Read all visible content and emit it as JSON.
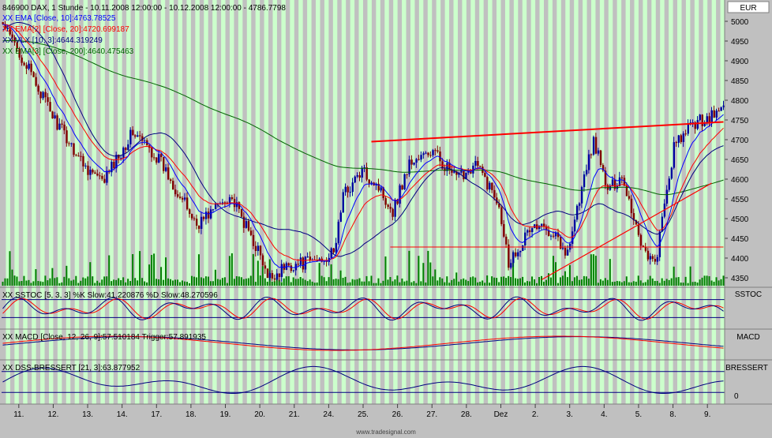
{
  "legends": {
    "title": "846900 DAX, 1 Stunde - 10.11.2008 12:00:00 - 10.12.2008 12:00:00 - 4786.7798",
    "ema10": "XX EMA [Close, 10]:4763.78525",
    "ema20": "XX EMA[2] [Close, 20]:4720.699187",
    "vlx": "XX VLX [10, 3]:4644.319249",
    "ema200": "XX EMA[3] [Close, 200]:4640.475463",
    "sstoc": "XX SSTOC [5, 3, 3] %K Slow:41.220876 %D Slow:48.270596",
    "macd": "XX MACD [Close, 12, 26, 9]:57.510184 Trigger:57.891935",
    "dss": "XX DSS-BRESSERT [21, 3]:63.877952"
  },
  "axis_tags": {
    "currency": "EUR",
    "sstoc": "SSTOC",
    "macd": "MACD",
    "dss": "BRESSERT",
    "dss_zero": "0"
  },
  "footer": "www.tradesignal.com",
  "colors": {
    "bg": "#c0c0c0",
    "highlight": "#ccffcc",
    "candle_up": "#0000a0",
    "candle_down": "#800000",
    "volume": "#008000",
    "ema10": "#0000ff",
    "ema20": "#ff0000",
    "vlx": "#000080",
    "ema200": "#006400",
    "trend": "#ff0000",
    "signal_line": "#000080"
  },
  "chart_data": [
    {
      "type": "candlestick",
      "title": "846900 DAX, 1 Stunde - 10.11.2008 12:00:00 - 10.12.2008 12:00:00 - 4786.7798",
      "ylabel": "EUR",
      "y_ticks": [
        4350,
        4400,
        4450,
        4500,
        4550,
        4600,
        4650,
        4700,
        4750,
        4800,
        4850,
        4900,
        4950,
        5000
      ],
      "ylim": [
        4330,
        5050
      ],
      "x_tick_labels": [
        "11.",
        "12.",
        "13.",
        "14.",
        "17.",
        "18.",
        "19.",
        "20.",
        "21.",
        "24.",
        "25.",
        "26.",
        "27.",
        "28.",
        "Dez",
        "2.",
        "3.",
        "4.",
        "5.",
        "8.",
        "9."
      ],
      "close_keypoints": [
        [
          0,
          4990
        ],
        [
          8,
          4910
        ],
        [
          22,
          4750
        ],
        [
          34,
          4640
        ],
        [
          42,
          4590
        ],
        [
          55,
          4720
        ],
        [
          66,
          4650
        ],
        [
          82,
          4485
        ],
        [
          96,
          4560
        ],
        [
          108,
          4420
        ],
        [
          112,
          4345
        ],
        [
          120,
          4380
        ],
        [
          130,
          4390
        ],
        [
          140,
          4410
        ],
        [
          144,
          4560
        ],
        [
          152,
          4620
        ],
        [
          158,
          4590
        ],
        [
          165,
          4520
        ],
        [
          172,
          4640
        ],
        [
          182,
          4670
        ],
        [
          192,
          4600
        ],
        [
          200,
          4640
        ],
        [
          210,
          4540
        ],
        [
          214,
          4390
        ],
        [
          224,
          4480
        ],
        [
          234,
          4470
        ],
        [
          238,
          4400
        ],
        [
          250,
          4700
        ],
        [
          256,
          4570
        ],
        [
          262,
          4610
        ],
        [
          270,
          4440
        ],
        [
          276,
          4380
        ],
        [
          284,
          4680
        ],
        [
          292,
          4740
        ],
        [
          300,
          4760
        ],
        [
          305,
          4780
        ]
      ],
      "last_close": 4786.7798,
      "ema10_last": 4763.78525,
      "ema20_last": 4720.699187,
      "vlx_last": 4644.319249,
      "ema200_last": 4640.475463,
      "horizontal_line": 4428,
      "trendlines": [
        {
          "from": [
            156,
            4695
          ],
          "to": [
            305,
            4745
          ]
        },
        {
          "from": [
            228,
            4345
          ],
          "to": [
            300,
            4590
          ]
        }
      ]
    },
    {
      "type": "line",
      "title": "XX SSTOC [5, 3, 3] %K Slow:41.220876 %D Slow:48.270596",
      "series": [
        {
          "name": "%K Slow",
          "last": 41.220876
        },
        {
          "name": "%D Slow",
          "last": 48.270596
        }
      ],
      "levels": [
        80,
        20
      ]
    },
    {
      "type": "line",
      "title": "XX MACD [Close, 12, 26, 9]:57.510184 Trigger:57.891935",
      "series": [
        {
          "name": "MACD",
          "last": 57.510184
        },
        {
          "name": "Trigger",
          "last": 57.891935
        }
      ]
    },
    {
      "type": "line",
      "title": "XX DSS-BRESSERT [21, 3]:63.877952",
      "series": [
        {
          "name": "DSS",
          "last": 63.877952
        }
      ],
      "levels": [
        80,
        20
      ]
    }
  ]
}
